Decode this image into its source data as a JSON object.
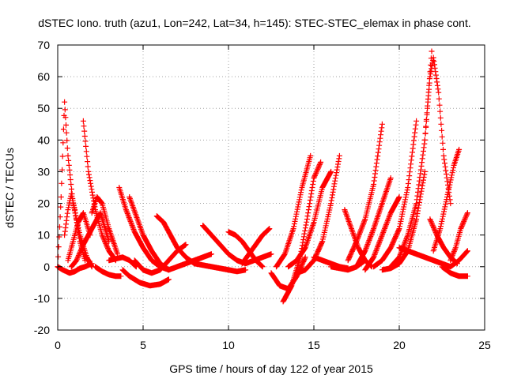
{
  "chart_data": {
    "type": "scatter",
    "title": "dSTEC Iono. truth (azu1, Lon=242, Lat=34, h=145): STEC-STEC_elemax in phase cont.",
    "xlabel": "GPS time / hours of day 122 of year 2015",
    "ylabel": "dSTEC  / TECUs",
    "xlim": [
      0,
      25
    ],
    "ylim": [
      -20,
      70
    ],
    "xticks": [
      0,
      5,
      10,
      15,
      20,
      25
    ],
    "yticks": [
      -20,
      -10,
      0,
      10,
      20,
      30,
      40,
      50,
      60,
      70
    ],
    "grid": true,
    "marker": "+",
    "color": "#ff0000",
    "arcs": [
      {
        "x": [
          0.0,
          0.2,
          0.4,
          0.6,
          0.9,
          1.3,
          1.7,
          2.0
        ],
        "y": [
          0,
          22,
          52,
          35,
          20,
          10,
          3,
          0
        ]
      },
      {
        "x": [
          0.0,
          0.3,
          0.7,
          1.0,
          1.3,
          1.6,
          2.0
        ],
        "y": [
          0,
          -1,
          -2,
          -1.5,
          -0.5,
          0,
          1
        ]
      },
      {
        "x": [
          0.4,
          0.6,
          0.8,
          1.0,
          1.3,
          1.6
        ],
        "y": [
          10,
          18,
          23,
          18,
          8,
          2
        ]
      },
      {
        "x": [
          0.6,
          0.9,
          1.2,
          1.5,
          1.9
        ],
        "y": [
          2,
          8,
          14,
          17,
          10
        ]
      },
      {
        "x": [
          0.8,
          1.1,
          1.5,
          2.0,
          2.5,
          3.0
        ],
        "y": [
          0,
          2,
          7,
          12,
          17,
          8
        ]
      },
      {
        "x": [
          1.5,
          1.8,
          2.2,
          2.6,
          3.0,
          3.4
        ],
        "y": [
          46,
          30,
          18,
          10,
          5,
          2
        ]
      },
      {
        "x": [
          2.0,
          2.3,
          2.6,
          3.0,
          3.5
        ],
        "y": [
          17,
          22,
          20,
          12,
          4
        ]
      },
      {
        "x": [
          2.2,
          2.6,
          3.0,
          3.4,
          3.7
        ],
        "y": [
          0,
          -1.5,
          -2.5,
          -3,
          -3
        ]
      },
      {
        "x": [
          3.0,
          3.4,
          3.8,
          4.2,
          4.6
        ],
        "y": [
          2,
          2.5,
          3,
          2,
          0
        ]
      },
      {
        "x": [
          3.6,
          4.0,
          4.5,
          5.0,
          5.5,
          6.0,
          6.5
        ],
        "y": [
          25,
          18,
          11,
          6,
          2,
          0,
          -1
        ]
      },
      {
        "x": [
          4.2,
          4.6,
          5.0,
          5.5,
          6.0,
          6.5
        ],
        "y": [
          22,
          16,
          10,
          5,
          1,
          -1
        ]
      },
      {
        "x": [
          3.8,
          4.2,
          4.8,
          5.4,
          6.0,
          6.5
        ],
        "y": [
          -1,
          -3,
          -5,
          -6,
          -5.5,
          -4
        ]
      },
      {
        "x": [
          4.5,
          5.0,
          5.5,
          6.0,
          6.5,
          7.0,
          7.5
        ],
        "y": [
          2,
          -1,
          -2,
          -1,
          2,
          5,
          7
        ]
      },
      {
        "x": [
          5.8,
          6.2,
          6.6,
          7.0,
          7.5,
          8.0
        ],
        "y": [
          16,
          14,
          10,
          6,
          3,
          1
        ]
      },
      {
        "x": [
          6.5,
          7.0,
          7.5,
          8.0,
          8.5,
          9.0
        ],
        "y": [
          -1,
          0,
          1,
          2,
          3,
          4
        ]
      },
      {
        "x": [
          8.5,
          9.0,
          9.5,
          10.0,
          10.5,
          11.0
        ],
        "y": [
          13,
          10,
          7,
          4,
          2,
          1
        ]
      },
      {
        "x": [
          8.0,
          8.5,
          9.0,
          9.5,
          10.0,
          10.5,
          11.0
        ],
        "y": [
          1,
          0.5,
          0,
          -0.5,
          -1,
          -1.5,
          -1
        ]
      },
      {
        "x": [
          10.0,
          10.4,
          10.8,
          11.2,
          11.6,
          12.0
        ],
        "y": [
          11,
          10,
          8,
          5,
          2,
          0
        ]
      },
      {
        "x": [
          10.8,
          11.2,
          11.6,
          12.0,
          12.4
        ],
        "y": [
          1,
          4,
          7,
          10,
          12
        ]
      },
      {
        "x": [
          11.0,
          11.5,
          12.0,
          12.5
        ],
        "y": [
          1,
          2,
          3,
          4
        ]
      },
      {
        "x": [
          12.5,
          13.0,
          13.5,
          14.0,
          14.5
        ],
        "y": [
          -2,
          -6,
          -7,
          -3,
          3
        ]
      },
      {
        "x": [
          12.8,
          13.3,
          13.8,
          14.3,
          14.8
        ],
        "y": [
          0,
          4,
          12,
          25,
          35
        ]
      },
      {
        "x": [
          13.2,
          13.7,
          14.2,
          14.6,
          15.0,
          15.4
        ],
        "y": [
          -11,
          -6,
          3,
          15,
          28,
          33
        ]
      },
      {
        "x": [
          13.5,
          14.0,
          14.5,
          15.0,
          15.5,
          16.0
        ],
        "y": [
          0,
          2,
          6,
          14,
          25,
          30
        ]
      },
      {
        "x": [
          14.0,
          14.5,
          15.0,
          15.5,
          16.0,
          16.5
        ],
        "y": [
          -2,
          -1,
          2,
          8,
          20,
          35
        ]
      },
      {
        "x": [
          15.0,
          15.5,
          16.0,
          16.5,
          17.0
        ],
        "y": [
          3,
          2,
          1,
          0,
          -0.5
        ]
      },
      {
        "x": [
          16.0,
          16.5,
          17.0,
          17.5,
          18.0
        ],
        "y": [
          0,
          -0.5,
          -1,
          0,
          2
        ]
      },
      {
        "x": [
          16.8,
          17.2,
          17.6,
          18.0,
          18.4
        ],
        "y": [
          18,
          12,
          6,
          2,
          0
        ]
      },
      {
        "x": [
          17.0,
          17.5,
          18.0,
          18.5,
          19.0
        ],
        "y": [
          2,
          8,
          15,
          26,
          45
        ]
      },
      {
        "x": [
          17.5,
          18.0,
          18.5,
          19.0,
          19.5
        ],
        "y": [
          0,
          5,
          12,
          20,
          28
        ]
      },
      {
        "x": [
          18.0,
          18.5,
          19.0,
          19.5,
          20.0
        ],
        "y": [
          -1,
          3,
          10,
          17,
          22
        ]
      },
      {
        "x": [
          18.5,
          19.0,
          19.5,
          20.0,
          20.5,
          21.0
        ],
        "y": [
          0,
          2,
          6,
          12,
          25,
          46
        ]
      },
      {
        "x": [
          19.0,
          19.5,
          20.0,
          20.5,
          21.0,
          21.5
        ],
        "y": [
          -1,
          -0.5,
          1,
          5,
          15,
          30
        ]
      },
      {
        "x": [
          19.5,
          20.0,
          20.5,
          21.0,
          21.5,
          21.9
        ],
        "y": [
          0,
          3,
          10,
          20,
          40,
          68
        ]
      },
      {
        "x": [
          21.5,
          21.8,
          22.0,
          22.3,
          22.6,
          23.0
        ],
        "y": [
          40,
          60,
          66,
          55,
          35,
          20
        ]
      },
      {
        "x": [
          21.8,
          22.2,
          22.6,
          23.0,
          23.4
        ],
        "y": [
          15,
          10,
          6,
          3,
          1
        ]
      },
      {
        "x": [
          22.0,
          22.4,
          22.8,
          23.2,
          23.5
        ],
        "y": [
          5,
          12,
          22,
          32,
          37
        ]
      },
      {
        "x": [
          22.5,
          23.0,
          23.5,
          24.0
        ],
        "y": [
          0,
          -2,
          -3,
          -3
        ]
      },
      {
        "x": [
          23.0,
          23.3,
          23.6,
          24.0
        ],
        "y": [
          2,
          6,
          12,
          17
        ]
      },
      {
        "x": [
          20.0,
          20.5,
          21.0,
          21.5,
          22.0,
          22.5,
          23.0,
          23.5,
          24.0
        ],
        "y": [
          6,
          5,
          4,
          3,
          2,
          1,
          0,
          2,
          5
        ]
      }
    ]
  }
}
